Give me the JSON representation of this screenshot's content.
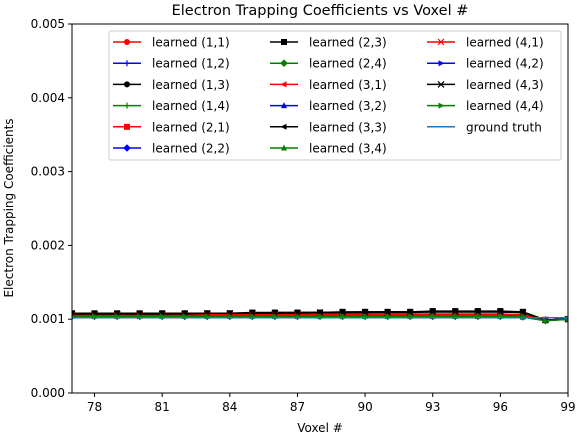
{
  "chart_data": {
    "type": "line",
    "title": "Electron Trapping Coefficients vs Voxel #",
    "xlabel": "Voxel #",
    "ylabel": "Electron Trapping Coefficients",
    "xlim": [
      77,
      99
    ],
    "ylim": [
      0,
      0.005
    ],
    "xticks": [
      78,
      81,
      84,
      87,
      90,
      93,
      96,
      99
    ],
    "yticks": [
      0,
      0.001,
      0.002,
      0.003,
      0.004,
      0.005
    ],
    "xtick_labels": [
      "78",
      "81",
      "84",
      "87",
      "90",
      "93",
      "96",
      "99"
    ],
    "ytick_labels": [
      "0.000",
      "0.001",
      "0.002",
      "0.003",
      "0.004",
      "0.005"
    ],
    "grid": false,
    "legend_position": "top-right",
    "x": [
      77,
      78,
      79,
      80,
      81,
      82,
      83,
      84,
      85,
      86,
      87,
      88,
      89,
      90,
      91,
      92,
      93,
      94,
      95,
      96,
      97,
      98,
      99
    ],
    "series": [
      {
        "name": "learned (1,1)",
        "color": "#ff0000",
        "marker": "circle",
        "values": [
          0.00107,
          0.00107,
          0.00107,
          0.00107,
          0.00107,
          0.00107,
          0.00107,
          0.00107,
          0.00107,
          0.00107,
          0.00107,
          0.00107,
          0.00107,
          0.00107,
          0.00107,
          0.00107,
          0.00107,
          0.00107,
          0.00107,
          0.00107,
          0.00106,
          0.00099,
          0.001
        ]
      },
      {
        "name": "learned (1,2)",
        "color": "#0000ff",
        "marker": "plus",
        "values": [
          0.00104,
          0.00104,
          0.00104,
          0.00104,
          0.00104,
          0.00104,
          0.00104,
          0.00104,
          0.00104,
          0.00104,
          0.00104,
          0.00104,
          0.00104,
          0.00104,
          0.00104,
          0.00104,
          0.00104,
          0.00104,
          0.00104,
          0.00104,
          0.00103,
          0.00099,
          0.001
        ]
      },
      {
        "name": "learned (1,3)",
        "color": "#000000",
        "marker": "circle",
        "values": [
          0.00107,
          0.00107,
          0.00107,
          0.00107,
          0.00108,
          0.00108,
          0.00108,
          0.00108,
          0.00108,
          0.00109,
          0.00109,
          0.00109,
          0.00109,
          0.0011,
          0.0011,
          0.0011,
          0.0011,
          0.0011,
          0.0011,
          0.0011,
          0.00109,
          0.00099,
          0.001
        ]
      },
      {
        "name": "learned (1,4)",
        "color": "#008000",
        "marker": "plus",
        "values": [
          0.00103,
          0.00103,
          0.00103,
          0.00103,
          0.00103,
          0.00103,
          0.00103,
          0.00103,
          0.00103,
          0.00103,
          0.00103,
          0.00103,
          0.00103,
          0.00103,
          0.00103,
          0.00103,
          0.00103,
          0.00103,
          0.00103,
          0.00103,
          0.00103,
          0.00098,
          0.001
        ]
      },
      {
        "name": "learned (2,1)",
        "color": "#ff0000",
        "marker": "square",
        "values": [
          0.00106,
          0.00106,
          0.00106,
          0.00106,
          0.00106,
          0.00106,
          0.00106,
          0.00106,
          0.00106,
          0.00106,
          0.00106,
          0.00106,
          0.00106,
          0.00106,
          0.00106,
          0.00106,
          0.00106,
          0.00106,
          0.00106,
          0.00106,
          0.00105,
          0.00099,
          0.001
        ]
      },
      {
        "name": "learned (2,2)",
        "color": "#0000ff",
        "marker": "diamond",
        "values": [
          0.00105,
          0.00105,
          0.00105,
          0.00105,
          0.00105,
          0.00105,
          0.00105,
          0.00105,
          0.00105,
          0.00105,
          0.00105,
          0.00105,
          0.00105,
          0.00105,
          0.00105,
          0.00105,
          0.00105,
          0.00105,
          0.00105,
          0.00105,
          0.00104,
          0.00099,
          0.001
        ]
      },
      {
        "name": "learned (2,3)",
        "color": "#000000",
        "marker": "square",
        "values": [
          0.00108,
          0.00108,
          0.00108,
          0.00108,
          0.00108,
          0.00108,
          0.00108,
          0.00108,
          0.00109,
          0.00109,
          0.00109,
          0.00109,
          0.0011,
          0.0011,
          0.0011,
          0.0011,
          0.00111,
          0.00111,
          0.00111,
          0.00111,
          0.0011,
          0.00099,
          0.001
        ]
      },
      {
        "name": "learned (2,4)",
        "color": "#008000",
        "marker": "diamond",
        "values": [
          0.00104,
          0.00104,
          0.00104,
          0.00104,
          0.00104,
          0.00104,
          0.00104,
          0.00104,
          0.00104,
          0.00104,
          0.00104,
          0.00104,
          0.00104,
          0.00104,
          0.00104,
          0.00104,
          0.00104,
          0.00104,
          0.00104,
          0.00104,
          0.00103,
          0.00098,
          0.001
        ]
      },
      {
        "name": "learned (3,1)",
        "color": "#ff0000",
        "marker": "triangle-left",
        "values": [
          0.00106,
          0.00106,
          0.00106,
          0.00106,
          0.00106,
          0.00106,
          0.00106,
          0.00106,
          0.00106,
          0.00106,
          0.00106,
          0.00106,
          0.00106,
          0.00106,
          0.00106,
          0.00106,
          0.00106,
          0.00106,
          0.00106,
          0.00106,
          0.00105,
          0.00099,
          0.001
        ]
      },
      {
        "name": "learned (3,2)",
        "color": "#0000ff",
        "marker": "triangle-up",
        "values": [
          0.00105,
          0.00105,
          0.00105,
          0.00105,
          0.00105,
          0.00105,
          0.00105,
          0.00105,
          0.00105,
          0.00105,
          0.00105,
          0.00105,
          0.00105,
          0.00105,
          0.00105,
          0.00105,
          0.00105,
          0.00105,
          0.00105,
          0.00105,
          0.00104,
          0.00099,
          0.001
        ]
      },
      {
        "name": "learned (3,3)",
        "color": "#000000",
        "marker": "triangle-left",
        "values": [
          0.00107,
          0.00107,
          0.00107,
          0.00107,
          0.00107,
          0.00108,
          0.00108,
          0.00108,
          0.00108,
          0.00108,
          0.00109,
          0.00109,
          0.00109,
          0.00109,
          0.0011,
          0.0011,
          0.0011,
          0.0011,
          0.0011,
          0.0011,
          0.00109,
          0.00099,
          0.001
        ]
      },
      {
        "name": "learned (3,4)",
        "color": "#008000",
        "marker": "triangle-up",
        "values": [
          0.00104,
          0.00104,
          0.00104,
          0.00104,
          0.00104,
          0.00104,
          0.00104,
          0.00104,
          0.00104,
          0.00104,
          0.00104,
          0.00104,
          0.00104,
          0.00104,
          0.00104,
          0.00104,
          0.00104,
          0.00104,
          0.00104,
          0.00104,
          0.00103,
          0.00098,
          0.001
        ]
      },
      {
        "name": "learned (4,1)",
        "color": "#ff0000",
        "marker": "x",
        "values": [
          0.00106,
          0.00106,
          0.00106,
          0.00106,
          0.00106,
          0.00106,
          0.00106,
          0.00106,
          0.00106,
          0.00106,
          0.00106,
          0.00106,
          0.00106,
          0.00106,
          0.00106,
          0.00106,
          0.00106,
          0.00106,
          0.00106,
          0.00106,
          0.00105,
          0.00099,
          0.001
        ]
      },
      {
        "name": "learned (4,2)",
        "color": "#0000ff",
        "marker": "triangle-right",
        "values": [
          0.00104,
          0.00104,
          0.00104,
          0.00104,
          0.00104,
          0.00104,
          0.00104,
          0.00104,
          0.00104,
          0.00104,
          0.00104,
          0.00104,
          0.00104,
          0.00104,
          0.00104,
          0.00104,
          0.00104,
          0.00104,
          0.00104,
          0.00104,
          0.00103,
          0.00099,
          0.001
        ]
      },
      {
        "name": "learned (4,3)",
        "color": "#000000",
        "marker": "x",
        "values": [
          0.00107,
          0.00107,
          0.00107,
          0.00107,
          0.00107,
          0.00107,
          0.00108,
          0.00108,
          0.00108,
          0.00108,
          0.00108,
          0.00109,
          0.00109,
          0.00109,
          0.00109,
          0.00109,
          0.0011,
          0.0011,
          0.0011,
          0.0011,
          0.00109,
          0.00099,
          0.001
        ]
      },
      {
        "name": "learned (4,4)",
        "color": "#008000",
        "marker": "triangle-right",
        "values": [
          0.00104,
          0.00104,
          0.00104,
          0.00104,
          0.00104,
          0.00104,
          0.00104,
          0.00104,
          0.00104,
          0.00104,
          0.00104,
          0.00104,
          0.00104,
          0.00104,
          0.00104,
          0.00104,
          0.00104,
          0.00104,
          0.00104,
          0.00104,
          0.00103,
          0.00098,
          0.001
        ]
      },
      {
        "name": "ground truth",
        "color": "#1f77b4",
        "marker": "none",
        "values": [
          0.00102,
          0.00102,
          0.00102,
          0.00102,
          0.00102,
          0.00102,
          0.00102,
          0.00102,
          0.00102,
          0.00102,
          0.00102,
          0.00102,
          0.00102,
          0.00102,
          0.00102,
          0.00102,
          0.00102,
          0.00102,
          0.00102,
          0.00102,
          0.00102,
          0.00102,
          0.00102
        ]
      }
    ]
  }
}
